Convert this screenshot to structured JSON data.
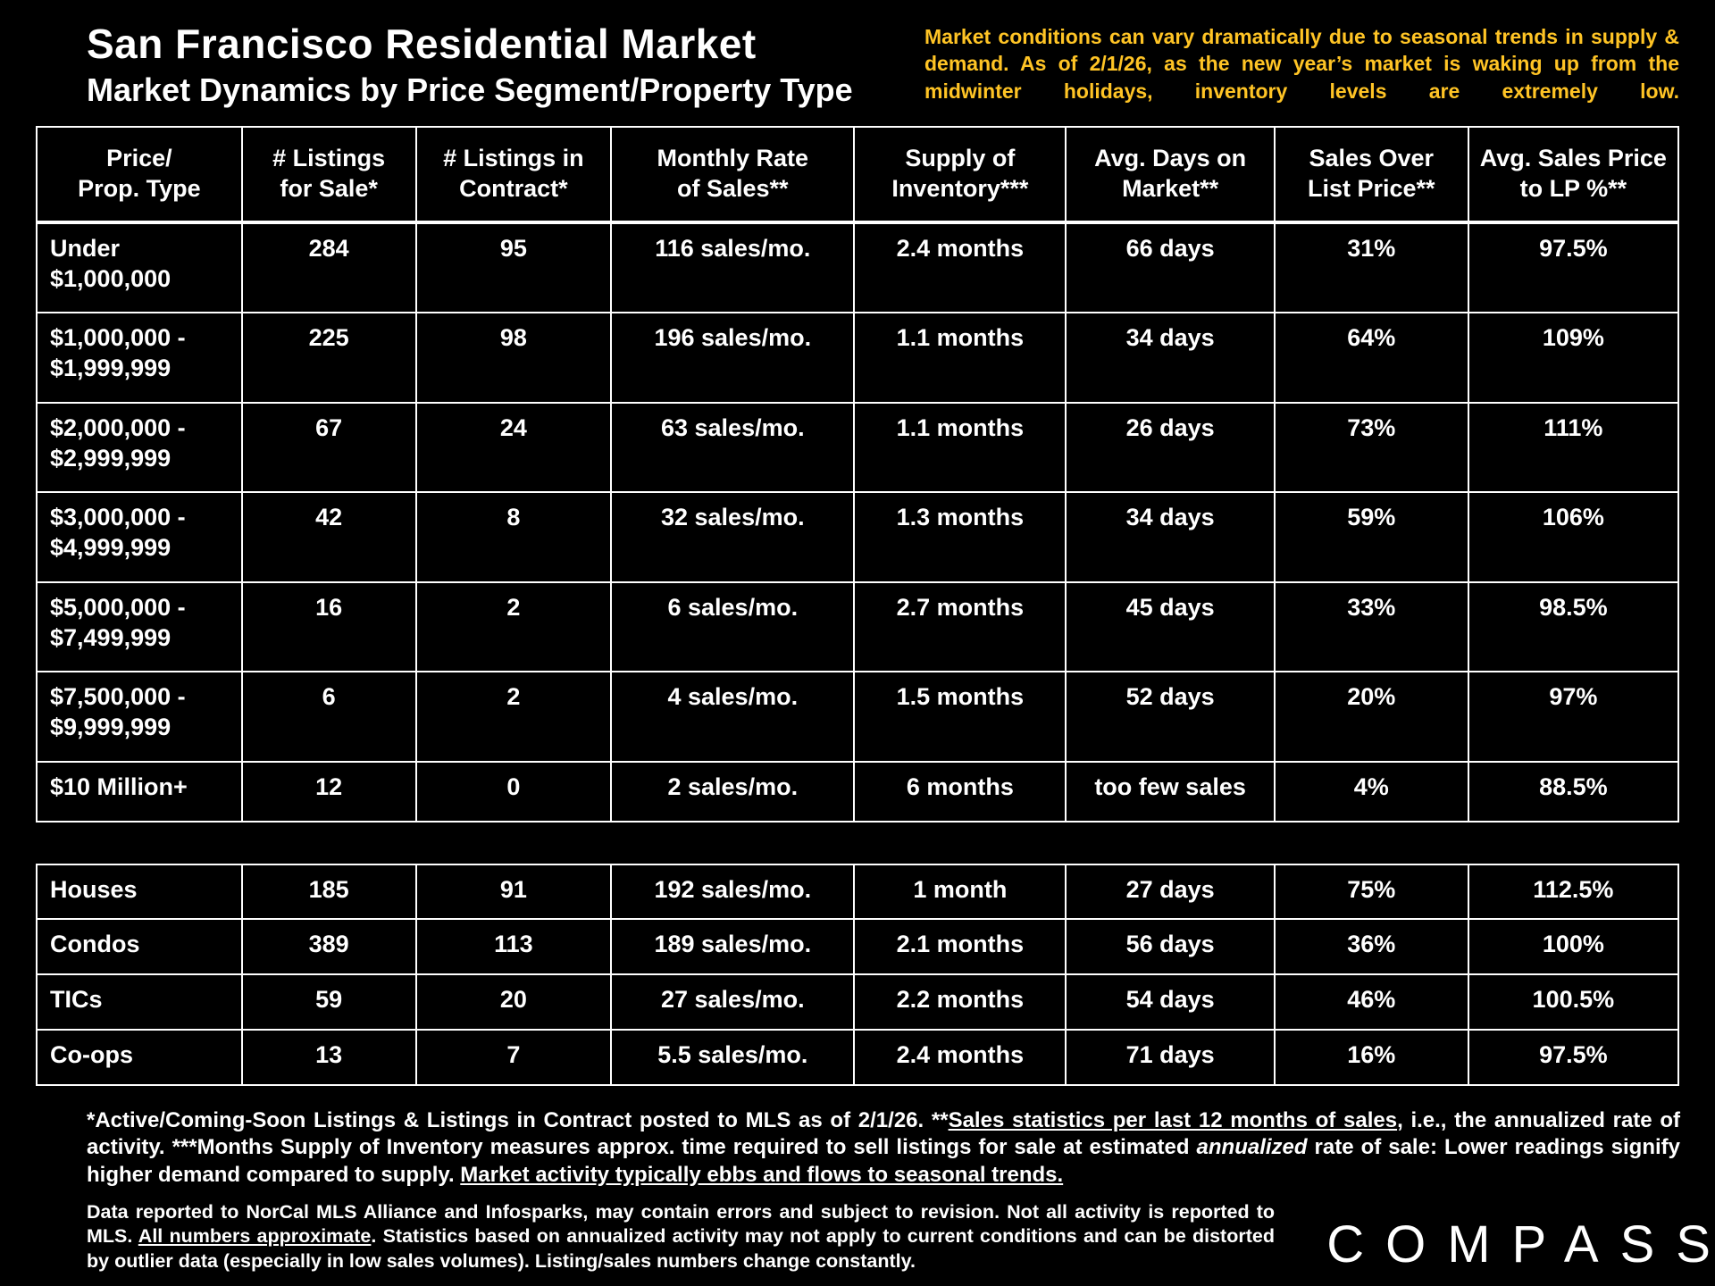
{
  "header": {
    "title": "San Francisco Residential Market",
    "subtitle": "Market Dynamics by Price Segment/Property Type",
    "note": "Market conditions can vary dramatically due to seasonal trends in supply & demand. As of 2/1/26, as the new year’s market is waking up from the midwinter holidays, inventory levels are extremely low."
  },
  "colors": {
    "background": "#000000",
    "text": "#ffffff",
    "accent_yellow": "#FFC425"
  },
  "chart_data": {
    "type": "table",
    "title": "San Francisco Residential Market — Market Dynamics by Price Segment/Property Type",
    "columns": [
      "Price/\nProp. Type",
      "# Listings\nfor Sale*",
      "# Listings in\nContract*",
      "Monthly Rate\nof Sales**",
      "Supply of\nInventory***",
      "Avg. Days on\nMarket**",
      "Sales Over\nList Price**",
      "Avg. Sales Price\nto LP %**"
    ],
    "price_segment_rows": [
      {
        "label": "Under\n$1,000,000",
        "values": [
          "284",
          "95",
          "116 sales/mo.",
          "2.4 months",
          "66 days",
          "31%",
          "97.5%"
        ]
      },
      {
        "label": "$1,000,000 -\n$1,999,999",
        "values": [
          "225",
          "98",
          "196 sales/mo.",
          "1.1 months",
          "34 days",
          "64%",
          "109%"
        ]
      },
      {
        "label": "$2,000,000 -\n$2,999,999",
        "values": [
          "67",
          "24",
          "63 sales/mo.",
          "1.1 months",
          "26 days",
          "73%",
          "111%"
        ]
      },
      {
        "label": "$3,000,000 -\n$4,999,999",
        "values": [
          "42",
          "8",
          "32 sales/mo.",
          "1.3 months",
          "34 days",
          "59%",
          "106%"
        ]
      },
      {
        "label": "$5,000,000 -\n$7,499,999",
        "values": [
          "16",
          "2",
          "6 sales/mo.",
          "2.7 months",
          "45 days",
          "33%",
          "98.5%"
        ]
      },
      {
        "label": "$7,500,000 -\n$9,999,999",
        "values": [
          "6",
          "2",
          "4 sales/mo.",
          "1.5 months",
          "52 days",
          "20%",
          "97%"
        ]
      },
      {
        "label": "$10 Million+",
        "values": [
          "12",
          "0",
          "2 sales/mo.",
          "6 months",
          "too few sales",
          "4%",
          "88.5%"
        ]
      }
    ],
    "property_type_rows": [
      {
        "label": "Houses",
        "values": [
          "185",
          "91",
          "192 sales/mo.",
          "1 month",
          "27 days",
          "75%",
          "112.5%"
        ]
      },
      {
        "label": "Condos",
        "values": [
          "389",
          "113",
          "189 sales/mo.",
          "2.1 months",
          "56 days",
          "36%",
          "100%"
        ]
      },
      {
        "label": "TICs",
        "values": [
          "59",
          "20",
          "27 sales/mo.",
          "2.2 months",
          "54 days",
          "46%",
          "100.5%"
        ]
      },
      {
        "label": "Co-ops",
        "values": [
          "13",
          "7",
          "5.5 sales/mo.",
          "2.4 months",
          "71 days",
          "16%",
          "97.5%"
        ]
      }
    ]
  },
  "footnotes": {
    "note1": [
      {
        "text": "*Active/Coming-Soon Listings & Listings in Contract posted to MLS as of 2/1/26.  **",
        "style": "normal"
      },
      {
        "text": "Sales statistics per last 12 months of sales",
        "style": "underline"
      },
      {
        "text": ", i.e., the annualized rate of activity.  ***Months Supply of Inventory measures approx. time required to sell listings for sale at estimated ",
        "style": "normal"
      },
      {
        "text": "annualized",
        "style": "italic"
      },
      {
        "text": " rate of sale:  Lower readings signify higher demand compared to supply. ",
        "style": "normal"
      },
      {
        "text": "Market activity typically ebbs and flows to seasonal trends.",
        "style": "underline"
      }
    ],
    "note2": [
      {
        "text": "Data reported to NorCal MLS Alliance and Infosparks, may contain errors and subject to revision.  Not all activity is reported to MLS. ",
        "style": "normal"
      },
      {
        "text": "All numbers approximate",
        "style": "underline"
      },
      {
        "text": ". Statistics based on annualized activity may not apply to current conditions and can be distorted by outlier data (especially in low sales volumes). Listing/sales numbers change constantly.",
        "style": "normal"
      }
    ]
  },
  "logo": {
    "text": "COMPASS"
  }
}
